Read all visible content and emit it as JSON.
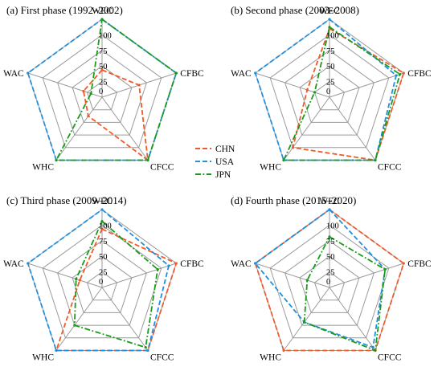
{
  "colors": {
    "CHN": "#f05a28",
    "USA": "#1f8fe0",
    "JPN": "#1a9a1a",
    "grid": "#9a9a9a"
  },
  "legend": [
    {
      "name": "CHN",
      "color": "#f05a28"
    },
    {
      "name": "USA",
      "color": "#1f8fe0"
    },
    {
      "name": "JPN",
      "color": "#1a9a1a"
    }
  ],
  "chart_data": [
    {
      "type": "radar",
      "title": "(a) First phase (1992–2002)",
      "axes": [
        "WEC",
        "CFBC",
        "CFCC",
        "WHC",
        "WAC"
      ],
      "ticks": [
        "0",
        "25",
        "50",
        "75",
        "100"
      ],
      "range": [
        0,
        100
      ],
      "series": [
        {
          "name": "CHN",
          "values": [
            35,
            50,
            100,
            30,
            25
          ]
        },
        {
          "name": "USA",
          "values": [
            100,
            100,
            100,
            100,
            100
          ]
        },
        {
          "name": "JPN",
          "values": [
            100,
            100,
            100,
            100,
            15
          ]
        }
      ]
    },
    {
      "type": "radar",
      "title": "(b) Second phase (2003–2008)",
      "axes": [
        "WEC",
        "CFBC",
        "CFCC",
        "WHC",
        "WAC"
      ],
      "ticks": [
        "0",
        "25",
        "50",
        "75",
        "100"
      ],
      "range": [
        0,
        100
      ],
      "series": [
        {
          "name": "CHN",
          "values": [
            88,
            100,
            100,
            80,
            30
          ]
        },
        {
          "name": "USA",
          "values": [
            100,
            90,
            100,
            100,
            100
          ]
        },
        {
          "name": "JPN",
          "values": [
            90,
            95,
            100,
            100,
            20
          ]
        }
      ]
    },
    {
      "type": "radar",
      "title": "(c) Third phase (2009–2014)",
      "axes": [
        "WEC",
        "CFBC",
        "CFCC",
        "WHC",
        "WAC"
      ],
      "ticks": [
        "0",
        "25",
        "50",
        "75",
        "100"
      ],
      "range": [
        0,
        100
      ],
      "series": [
        {
          "name": "CHN",
          "values": [
            75,
            100,
            100,
            100,
            30
          ]
        },
        {
          "name": "USA",
          "values": [
            100,
            90,
            100,
            100,
            100
          ]
        },
        {
          "name": "JPN",
          "values": [
            85,
            75,
            95,
            60,
            35
          ]
        }
      ]
    },
    {
      "type": "radar",
      "title": "(d) Fourth phase (2015–2020)",
      "axes": [
        "WEC",
        "CFBC",
        "CFCC",
        "WHC",
        "WAC"
      ],
      "ticks": [
        "0",
        "25",
        "50",
        "75",
        "100"
      ],
      "range": [
        0,
        100
      ],
      "series": [
        {
          "name": "CHN",
          "values": [
            100,
            100,
            100,
            100,
            100
          ]
        },
        {
          "name": "USA",
          "values": [
            100,
            75,
            95,
            55,
            100
          ]
        },
        {
          "name": "JPN",
          "values": [
            65,
            75,
            100,
            55,
            30
          ]
        }
      ]
    }
  ]
}
